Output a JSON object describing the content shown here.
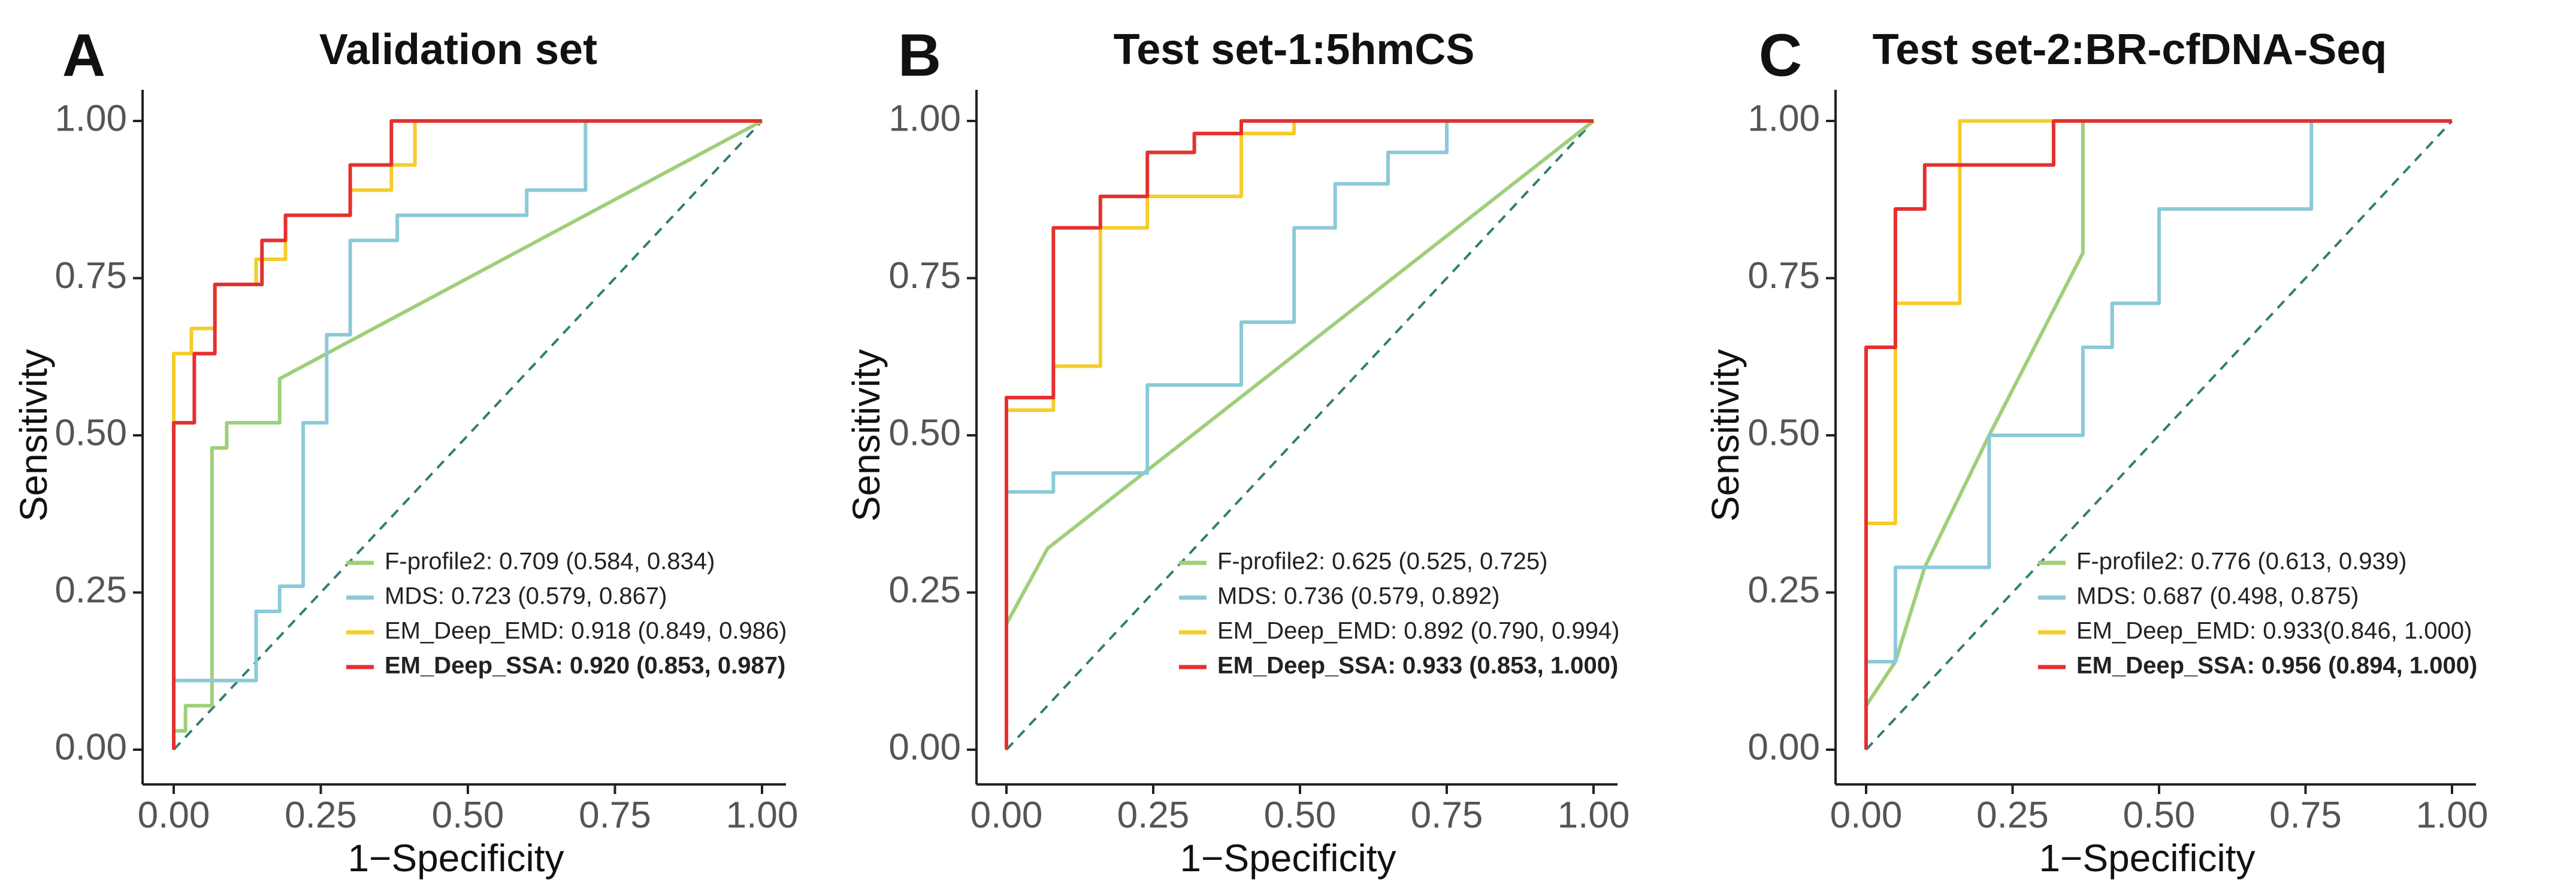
{
  "colors": {
    "F-profile2": "#9fcf7a",
    "MDS": "#8cc9d8",
    "EM_Deep_EMD": "#f5cc2a",
    "EM_Deep_SSA": "#e5302e",
    "diagonal": "#2f7f6f"
  },
  "chart_data": [
    {
      "type": "line",
      "panel": "A",
      "title": "Validation set",
      "xlabel": "1−Specificity",
      "ylabel": "Sensitivity",
      "xlim": [
        0,
        1
      ],
      "ylim": [
        0,
        1
      ],
      "xticks": [
        "0.00",
        "0.25",
        "0.50",
        "0.75",
        "1.00"
      ],
      "yticks": [
        "0.00",
        "0.25",
        "0.50",
        "0.75",
        "1.00"
      ],
      "legend_position": "bottom-right",
      "series": [
        {
          "name": "F-profile2",
          "label": "F-profile2: 0.709 (0.584, 0.834)",
          "bold": false,
          "step": false,
          "x": [
            0,
            0,
            0.02,
            0.02,
            0.065,
            0.065,
            0.09,
            0.09,
            0.18,
            0.18,
            1.0
          ],
          "y": [
            0,
            0.03,
            0.03,
            0.07,
            0.07,
            0.48,
            0.48,
            0.52,
            0.52,
            0.59,
            1.0
          ]
        },
        {
          "name": "MDS",
          "label": "MDS: 0.723 (0.579, 0.867)",
          "bold": false,
          "step": true,
          "x": [
            0,
            0,
            0.14,
            0.14,
            0.18,
            0.18,
            0.22,
            0.22,
            0.26,
            0.26,
            0.3,
            0.3,
            0.38,
            0.38,
            0.6,
            0.6,
            0.7,
            0.7,
            1.0
          ],
          "y": [
            0,
            0.11,
            0.11,
            0.22,
            0.22,
            0.26,
            0.26,
            0.52,
            0.52,
            0.66,
            0.66,
            0.81,
            0.81,
            0.85,
            0.85,
            0.89,
            0.89,
            1.0,
            1.0
          ]
        },
        {
          "name": "EM_Deep_EMD",
          "label": "EM_Deep_EMD: 0.918 (0.849, 0.986)",
          "bold": false,
          "step": true,
          "x": [
            0,
            0,
            0.03,
            0.03,
            0.07,
            0.07,
            0.14,
            0.14,
            0.19,
            0.19,
            0.3,
            0.3,
            0.37,
            0.37,
            0.41,
            0.41,
            1.0
          ],
          "y": [
            0,
            0.63,
            0.63,
            0.67,
            0.67,
            0.74,
            0.74,
            0.78,
            0.78,
            0.85,
            0.85,
            0.89,
            0.89,
            0.93,
            0.93,
            1.0,
            1.0
          ]
        },
        {
          "name": "EM_Deep_SSA",
          "label": "EM_Deep_SSA: 0.920 (0.853, 0.987)",
          "bold": true,
          "step": true,
          "x": [
            0,
            0,
            0.035,
            0.035,
            0.07,
            0.07,
            0.15,
            0.15,
            0.19,
            0.19,
            0.3,
            0.3,
            0.37,
            0.37,
            0.41,
            0.41,
            1.0
          ],
          "y": [
            0,
            0.52,
            0.52,
            0.63,
            0.63,
            0.74,
            0.74,
            0.81,
            0.81,
            0.85,
            0.85,
            0.93,
            0.93,
            1.0,
            1.0,
            1.0,
            1.0
          ]
        }
      ]
    },
    {
      "type": "line",
      "panel": "B",
      "title": "Test set-1:5hmCS",
      "xlabel": "1−Specificity",
      "ylabel": "Sensitivity",
      "xlim": [
        0,
        1
      ],
      "ylim": [
        0,
        1
      ],
      "xticks": [
        "0.00",
        "0.25",
        "0.50",
        "0.75",
        "1.00"
      ],
      "yticks": [
        "0.00",
        "0.25",
        "0.50",
        "0.75",
        "1.00"
      ],
      "legend_position": "bottom-right",
      "series": [
        {
          "name": "F-profile2",
          "label": "F-profile2: 0.625 (0.525, 0.725)",
          "bold": false,
          "step": false,
          "x": [
            0,
            0,
            0.07,
            1.0
          ],
          "y": [
            0,
            0.2,
            0.32,
            1.0
          ]
        },
        {
          "name": "MDS",
          "label": "MDS: 0.736 (0.579, 0.892)",
          "bold": false,
          "step": true,
          "x": [
            0,
            0,
            0.08,
            0.08,
            0.24,
            0.24,
            0.4,
            0.4,
            0.49,
            0.49,
            0.56,
            0.56,
            0.65,
            0.65,
            0.75,
            0.75,
            1.0
          ],
          "y": [
            0,
            0.41,
            0.41,
            0.44,
            0.44,
            0.58,
            0.58,
            0.68,
            0.68,
            0.83,
            0.83,
            0.9,
            0.9,
            0.95,
            0.95,
            1.0,
            1.0
          ]
        },
        {
          "name": "EM_Deep_EMD",
          "label": "EM_Deep_EMD: 0.892 (0.790, 0.994)",
          "bold": false,
          "step": true,
          "x": [
            0,
            0,
            0.08,
            0.08,
            0.16,
            0.16,
            0.24,
            0.24,
            0.4,
            0.4,
            0.49,
            0.49,
            1.0
          ],
          "y": [
            0,
            0.54,
            0.54,
            0.61,
            0.61,
            0.83,
            0.83,
            0.88,
            0.88,
            0.98,
            0.98,
            1.0,
            1.0
          ]
        },
        {
          "name": "EM_Deep_SSA",
          "label": "EM_Deep_SSA: 0.933 (0.853, 1.000)",
          "bold": true,
          "step": true,
          "x": [
            0,
            0,
            0.08,
            0.08,
            0.16,
            0.16,
            0.24,
            0.24,
            0.32,
            0.32,
            0.4,
            0.4,
            1.0
          ],
          "y": [
            0,
            0.56,
            0.56,
            0.83,
            0.83,
            0.88,
            0.88,
            0.95,
            0.95,
            0.98,
            0.98,
            1.0,
            1.0
          ]
        }
      ]
    },
    {
      "type": "line",
      "panel": "C",
      "title": "Test set-2:BR-cfDNA-Seq",
      "xlabel": "1−Specificity",
      "ylabel": "Sensitivity",
      "xlim": [
        0,
        1
      ],
      "ylim": [
        0,
        1
      ],
      "xticks": [
        "0.00",
        "0.25",
        "0.50",
        "0.75",
        "1.00"
      ],
      "yticks": [
        "0.00",
        "0.25",
        "0.50",
        "0.75",
        "1.00"
      ],
      "legend_position": "bottom-right",
      "series": [
        {
          "name": "F-profile2",
          "label": "F-profile2: 0.776 (0.613, 0.939)",
          "bold": false,
          "step": false,
          "x": [
            0,
            0.05,
            0.1,
            0.21,
            0.37,
            0.37,
            1.0
          ],
          "y": [
            0.07,
            0.14,
            0.29,
            0.5,
            0.79,
            1.0,
            1.0
          ]
        },
        {
          "name": "MDS",
          "label": "MDS: 0.687 (0.498, 0.875)",
          "bold": false,
          "step": true,
          "x": [
            0,
            0,
            0.05,
            0.05,
            0.21,
            0.21,
            0.37,
            0.37,
            0.42,
            0.42,
            0.5,
            0.5,
            0.76,
            0.76,
            1.0
          ],
          "y": [
            0,
            0.14,
            0.14,
            0.29,
            0.29,
            0.5,
            0.5,
            0.64,
            0.64,
            0.71,
            0.71,
            0.86,
            0.86,
            1.0,
            1.0
          ]
        },
        {
          "name": "EM_Deep_EMD",
          "label": "EM_Deep_EMD: 0.933(0.846, 1.000)",
          "bold": false,
          "step": true,
          "x": [
            0,
            0,
            0.05,
            0.05,
            0.16,
            0.16,
            1.0
          ],
          "y": [
            0,
            0.36,
            0.36,
            0.71,
            0.71,
            1.0,
            1.0
          ]
        },
        {
          "name": "EM_Deep_SSA",
          "label": "EM_Deep_SSA: 0.956 (0.894, 1.000)",
          "bold": true,
          "step": true,
          "x": [
            0,
            0,
            0.05,
            0.05,
            0.1,
            0.1,
            0.32,
            0.32,
            1.0
          ],
          "y": [
            0,
            0.64,
            0.64,
            0.86,
            0.86,
            0.93,
            0.93,
            1.0,
            1.0
          ]
        }
      ]
    }
  ]
}
